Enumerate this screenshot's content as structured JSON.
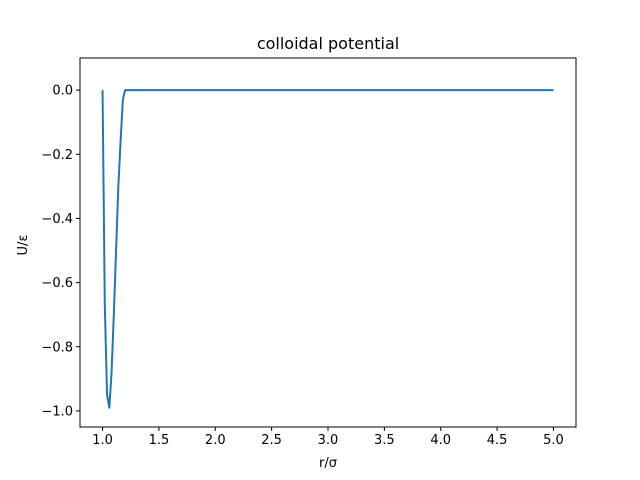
{
  "chart_data": {
    "type": "line",
    "title": "colloidal potential",
    "xlabel": "r/σ",
    "ylabel": "U/ε",
    "xlim": [
      0.8,
      5.2
    ],
    "ylim": [
      -1.05,
      0.1
    ],
    "grid": false,
    "x_ticks": [
      1.0,
      1.5,
      2.0,
      2.5,
      3.0,
      3.5,
      4.0,
      4.5,
      5.0
    ],
    "x_tick_labels": [
      "1.0",
      "1.5",
      "2.0",
      "2.5",
      "3.0",
      "3.5",
      "4.0",
      "4.5",
      "5.0"
    ],
    "y_ticks": [
      0.0,
      -0.2,
      -0.4,
      -0.6,
      -0.8,
      -1.0
    ],
    "y_tick_labels": [
      "0.0",
      "−0.2",
      "−0.4",
      "−0.6",
      "−0.8",
      "−1.0"
    ],
    "series": [
      {
        "color": "#1f77b4",
        "x": [
          1.0,
          1.02,
          1.04,
          1.06,
          1.08,
          1.1,
          1.12,
          1.14,
          1.16,
          1.18,
          1.2,
          1.25,
          1.5,
          2.0,
          2.5,
          3.0,
          3.5,
          4.0,
          4.5,
          5.0
        ],
        "y": [
          0.0,
          -0.67,
          -0.95,
          -0.99,
          -0.88,
          -0.7,
          -0.5,
          -0.3,
          -0.16,
          -0.03,
          0.0,
          0.0,
          0.0,
          0.0,
          0.0,
          0.0,
          0.0,
          0.0,
          0.0,
          0.0
        ]
      }
    ]
  }
}
